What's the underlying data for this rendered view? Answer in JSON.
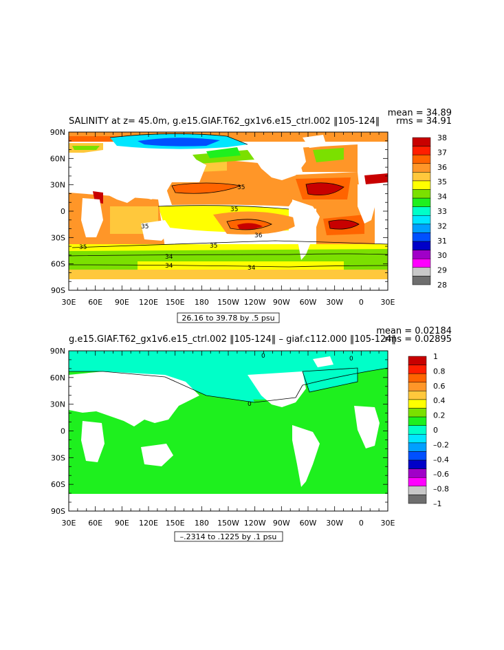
{
  "panels": [
    {
      "title": "SALINITY at z=  45.0m, g.e15.GIAF.T62_gx1v6.e15_ctrl.002 ‖105-124‖",
      "mean": "mean = 34.89",
      "rms": "rms = 34.91",
      "range": "26.16 to 39.78 by .5 psu",
      "lat_labels": [
        "90N",
        "60N",
        "30N",
        "0",
        "30S",
        "60S",
        "90S"
      ],
      "lon_labels": [
        "30E",
        "60E",
        "90E",
        "120E",
        "150E",
        "180",
        "150W",
        "120W",
        "90W",
        "60W",
        "30W",
        "0",
        "30E"
      ],
      "colorbar": {
        "labels": [
          "38",
          "37",
          "36",
          "35",
          "34",
          "33",
          "32",
          "31",
          "30",
          "29",
          "28"
        ],
        "colors": [
          "#c80000",
          "#ff1e00",
          "#ff6400",
          "#ff9628",
          "#ffc83c",
          "#ffff00",
          "#7be000",
          "#1ef01e",
          "#00ffc8",
          "#00e6ff",
          "#00a0ff",
          "#0050ff",
          "#0000c8",
          "#a000c8",
          "#ff00ff",
          "#c8c8c8",
          "#6e6e6e"
        ]
      },
      "contour_labels": [
        "35",
        "35",
        "35",
        "36",
        "35",
        "34",
        "34",
        "34",
        "35"
      ]
    },
    {
      "title": "g.e15.GIAF.T62_gx1v6.e15_ctrl.002 ‖105-124‖ – giaf.c112.000 ‖105-124‖",
      "mean": "mean = 0.02184",
      "rms": "rms = 0.02895",
      "range": "–.2314 to .1225 by .1 psu",
      "lat_labels": [
        "90N",
        "60N",
        "30N",
        "0",
        "30S",
        "60S",
        "90S"
      ],
      "lon_labels": [
        "30E",
        "60E",
        "90E",
        "120E",
        "150E",
        "180",
        "150W",
        "120W",
        "90W",
        "60W",
        "30W",
        "0",
        "30E"
      ],
      "colorbar": {
        "labels": [
          "1",
          "0.8",
          "0.6",
          "0.4",
          "0.2",
          "0",
          "–0.2",
          "–0.4",
          "–0.6",
          "–0.8",
          "–1"
        ],
        "colors": [
          "#c80000",
          "#ff1e00",
          "#ff6400",
          "#ff9628",
          "#ffc83c",
          "#ffff00",
          "#7be000",
          "#1ef01e",
          "#00ffc8",
          "#00e6ff",
          "#00a0ff",
          "#0050ff",
          "#0000c8",
          "#a000c8",
          "#ff00ff",
          "#c8c8c8",
          "#6e6e6e"
        ]
      },
      "contour_labels": [
        "0",
        "0",
        "0"
      ]
    }
  ]
}
